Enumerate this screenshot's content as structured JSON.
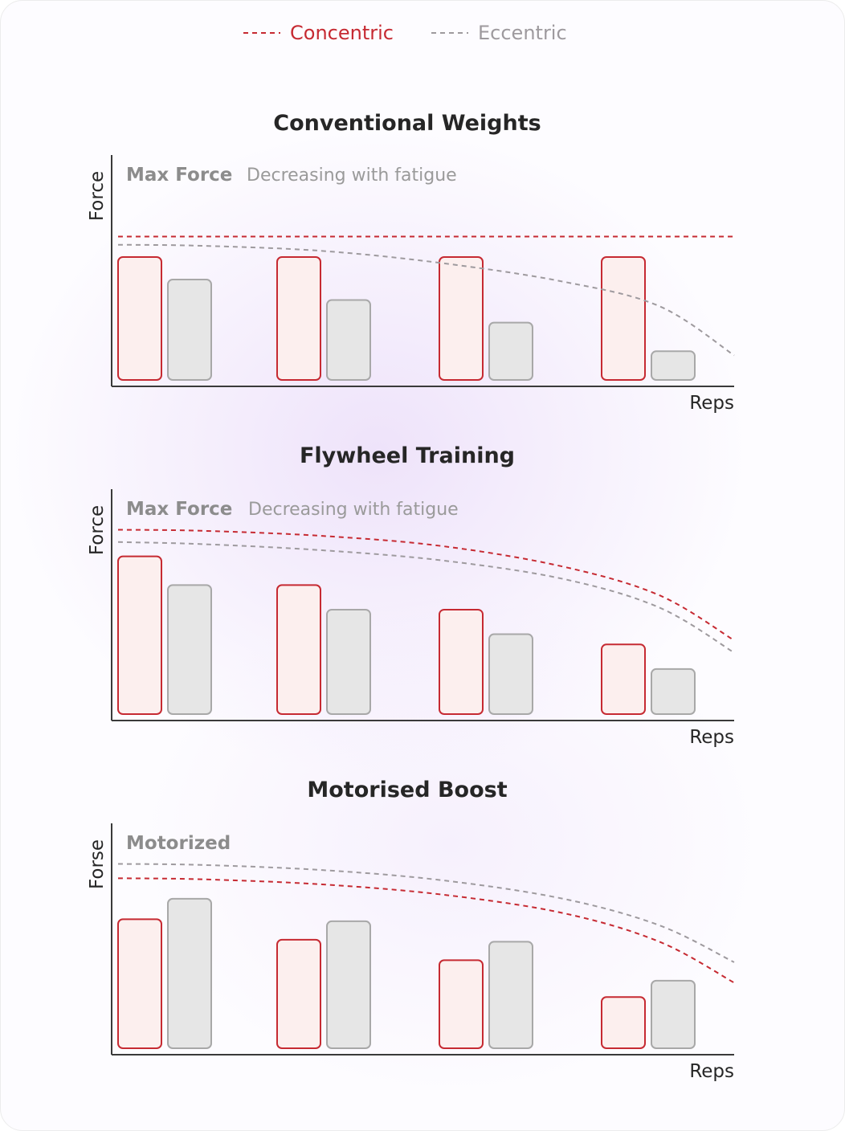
{
  "colors": {
    "concentric": "#c62a32",
    "concentric_fill": "#fcefee",
    "eccentric": "#9e9a9e",
    "eccentric_fill": "#e6e6e6",
    "eccentric_stroke": "#a8a8a8",
    "axis": "#3a3a3a",
    "title": "#262626"
  },
  "legend": [
    {
      "label": "Concentric",
      "color": "#c62a32"
    },
    {
      "label": "Eccentric",
      "color": "#9e9a9e"
    }
  ],
  "chart_data": [
    {
      "type": "bar",
      "title": "Conventional Weights",
      "ylabel": "Force",
      "xlabel": "Reps",
      "annotation": {
        "strong": "Max Force",
        "soft": "Decreasing with fatigue"
      },
      "ylim": [
        0,
        100
      ],
      "grid": false,
      "legend_position": "top",
      "categories": [
        "",
        "",
        "",
        ""
      ],
      "series": [
        {
          "name": "Concentric",
          "values": [
            60,
            60,
            60,
            60
          ]
        },
        {
          "name": "Eccentric",
          "values": [
            49,
            39,
            28,
            14
          ]
        }
      ],
      "reference_lines": [
        {
          "series": "Concentric",
          "style": "dashed",
          "y": [
            70,
            70,
            70,
            70,
            70,
            70,
            70
          ]
        },
        {
          "series": "Eccentric",
          "style": "dashed",
          "y": [
            66,
            65.5,
            63,
            57,
            48,
            36,
            12
          ]
        }
      ]
    },
    {
      "type": "bar",
      "title": "Flywheel Training",
      "ylabel": "Force",
      "xlabel": "Reps",
      "annotation": {
        "strong": "Max Force",
        "soft": "Decreasing with fatigue"
      },
      "ylim": [
        0,
        100
      ],
      "grid": false,
      "legend_position": "top",
      "categories": [
        "",
        "",
        "",
        ""
      ],
      "series": [
        {
          "name": "Concentric",
          "values": [
            77,
            63,
            51,
            34
          ]
        },
        {
          "name": "Eccentric",
          "values": [
            63,
            51,
            39,
            22
          ]
        }
      ],
      "reference_lines": [
        {
          "series": "Concentric",
          "style": "dashed",
          "y": [
            90,
            89.5,
            87,
            82,
            72,
            58,
            36
          ]
        },
        {
          "series": "Eccentric",
          "style": "dashed",
          "y": [
            84,
            83,
            80,
            75,
            66,
            52,
            30
          ]
        }
      ]
    },
    {
      "type": "bar",
      "title": "Motorised Boost",
      "ylabel": "Forse",
      "xlabel": "Reps",
      "annotation": {
        "strong": "Motorized",
        "soft": ""
      },
      "ylim": [
        0,
        100
      ],
      "grid": false,
      "legend_position": "top",
      "categories": [
        "",
        "",
        "",
        ""
      ],
      "series": [
        {
          "name": "Concentric",
          "values": [
            63,
            53,
            43,
            25
          ]
        },
        {
          "name": "Eccentric",
          "values": [
            73,
            62,
            52,
            33
          ]
        }
      ],
      "reference_lines": [
        {
          "series": "Concentric",
          "style": "dashed",
          "y": [
            83,
            82.5,
            80,
            75,
            66,
            52,
            32
          ]
        },
        {
          "series": "Eccentric",
          "style": "dashed",
          "y": [
            90,
            89.5,
            87,
            82,
            73,
            60,
            42
          ]
        }
      ]
    }
  ]
}
